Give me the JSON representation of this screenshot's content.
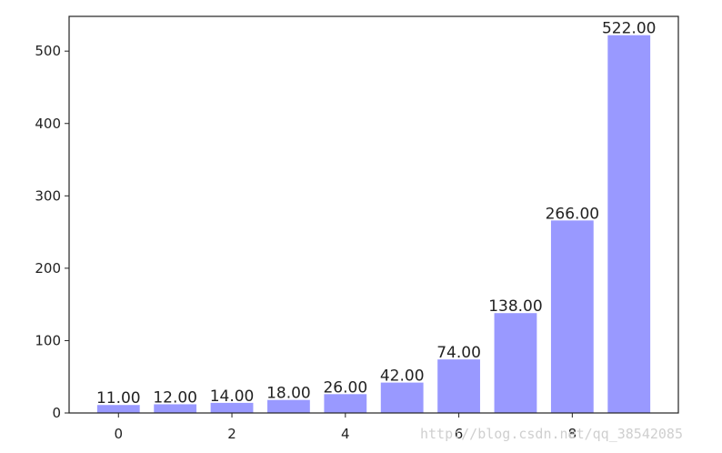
{
  "chart_data": {
    "type": "bar",
    "x": [
      0,
      1,
      2,
      3,
      4,
      5,
      6,
      7,
      8,
      9
    ],
    "values": [
      11,
      12,
      14,
      18,
      26,
      42,
      74,
      138,
      266,
      522
    ],
    "data_labels": [
      "11.00",
      "12.00",
      "14.00",
      "18.00",
      "26.00",
      "42.00",
      "74.00",
      "138.00",
      "266.00",
      "522.00"
    ],
    "title": "",
    "xlabel": "",
    "ylabel": "",
    "xlim": [
      -0.87,
      9.87
    ],
    "ylim": [
      0,
      548
    ],
    "xticks": [
      0,
      2,
      4,
      6,
      8
    ],
    "yticks": [
      0,
      100,
      200,
      300,
      400,
      500
    ],
    "bar_width": 0.75,
    "grid": false,
    "legend": "none",
    "bar_color": "#9999ff"
  },
  "watermark": "http://blog.csdn.net/qq_38542085"
}
